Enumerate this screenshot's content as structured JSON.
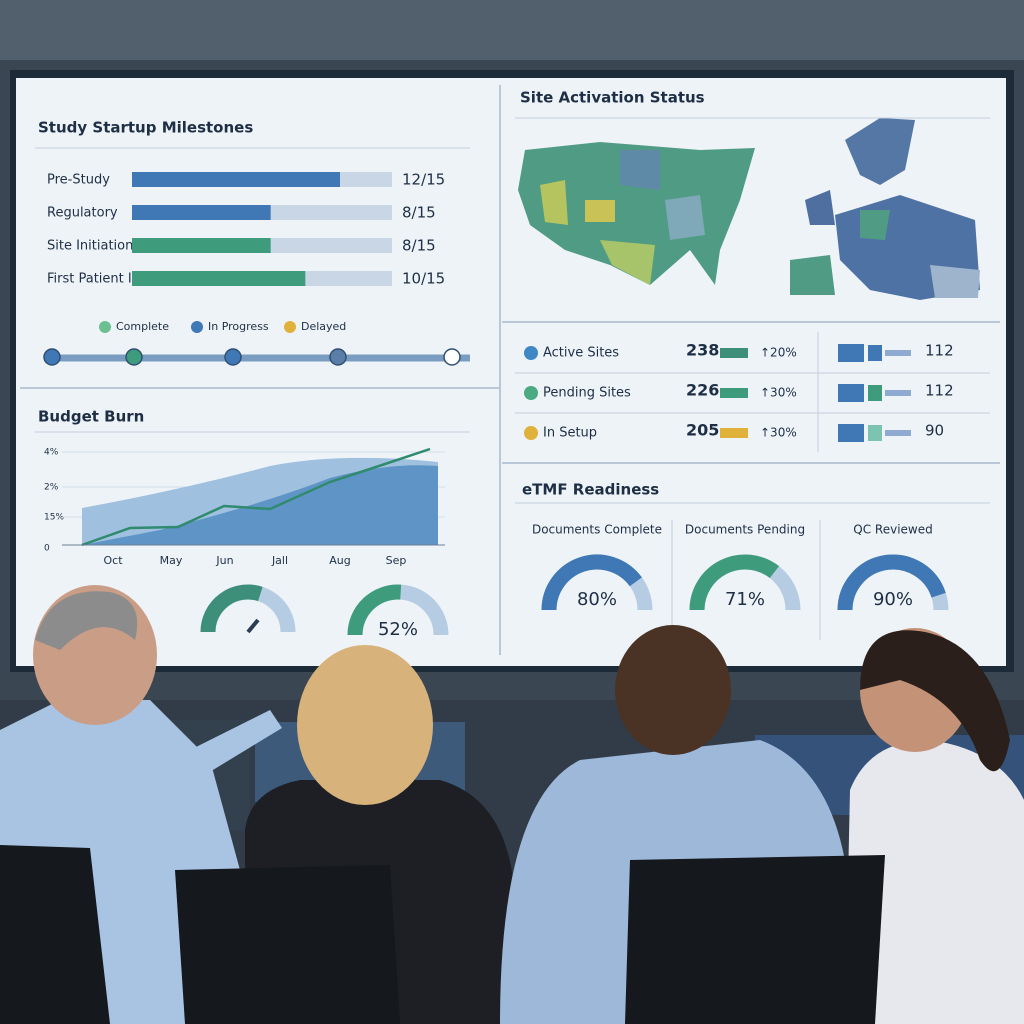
{
  "milestones": {
    "title": "Study Startup Milestones",
    "rows": [
      {
        "label": "Pre-Study",
        "value": "12/15"
      },
      {
        "label": "Regulatory",
        "value": "8/15"
      },
      {
        "label": "Site Initiation",
        "value": "8/15"
      },
      {
        "label": "First Patient In",
        "value": "10/15"
      }
    ],
    "legend": [
      "Complete",
      "In Progress",
      "Delayed"
    ]
  },
  "site_activation": {
    "title": "Site Activation Status",
    "rows": [
      {
        "label": "Active Sites",
        "count": "238",
        "change": "↑20%",
        "total": "112"
      },
      {
        "label": "Pending Sites",
        "count": "226",
        "change": "↑30%",
        "total": "112"
      },
      {
        "label": "In Setup",
        "count": "205",
        "change": "↑30%",
        "total": "90"
      }
    ]
  },
  "budget": {
    "title": "Budget Burn",
    "y_labels": [
      "4%",
      "2%",
      "15%",
      "0"
    ],
    "x_labels": [
      "Oct",
      "May",
      "Jun",
      "Jall",
      "Aug",
      "Sep"
    ],
    "gauge_value": "52%"
  },
  "etmf": {
    "title": "eTMF Readiness",
    "gauges": [
      {
        "label": "Documents Complete",
        "value": "80%"
      },
      {
        "label": "Documents Pending",
        "value": "71%"
      },
      {
        "label": "QC Reviewed",
        "value": "90%"
      }
    ]
  }
}
